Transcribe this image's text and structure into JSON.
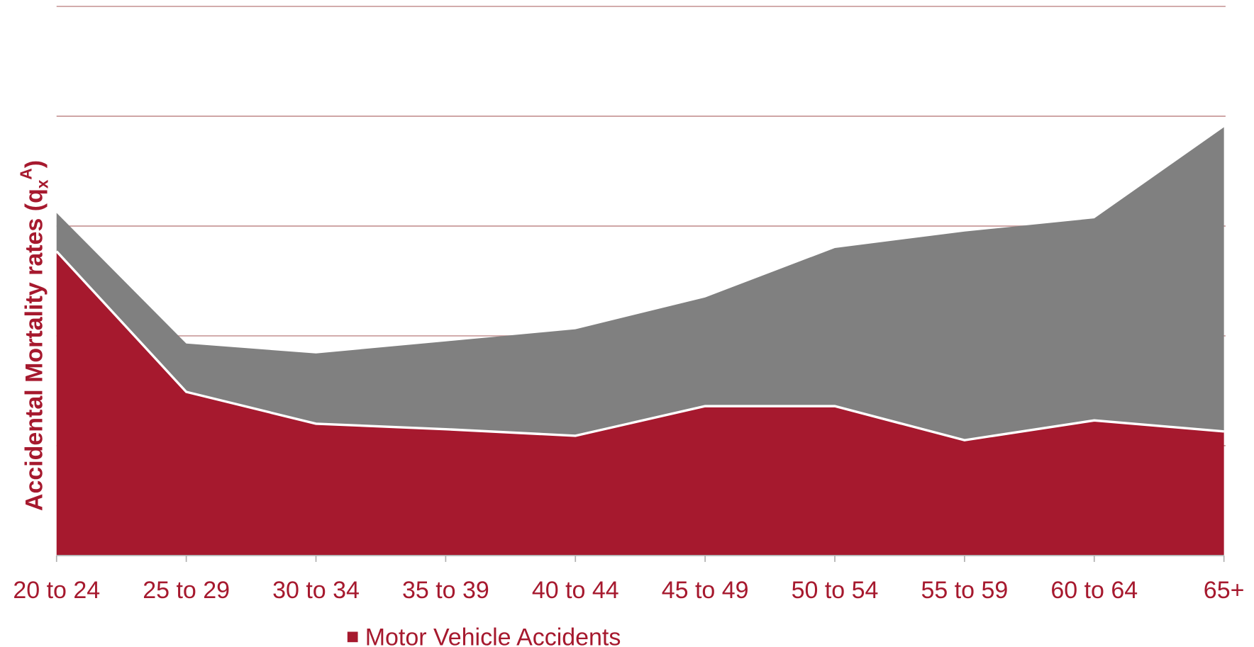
{
  "chart_data": {
    "type": "stacked_area",
    "y_label": {
      "text": "Accidental Mortality rates (q",
      "sub": "x",
      "sup": "A",
      "end": ")"
    },
    "categories": [
      "20 to 24",
      "25 to 29",
      "30 to 34",
      "35 to 39",
      "40 to 44",
      "45 to 49",
      "50 to 54",
      "55 to 59",
      "60 to 64",
      "65+"
    ],
    "series": [
      {
        "name": "Motor Vehicle Accidents",
        "color": "#a6192e",
        "values": [
          2.77,
          1.49,
          1.2,
          1.15,
          1.09,
          1.36,
          1.36,
          1.05,
          1.23,
          1.13
        ]
      },
      {
        "name": null,
        "color": "#808080",
        "values": [
          0.35,
          0.44,
          0.64,
          0.8,
          0.97,
          0.99,
          1.44,
          1.9,
          1.84,
          2.77
        ]
      }
    ],
    "ylim": [
      0,
      5
    ],
    "yticks": [
      0,
      1,
      2,
      3,
      4,
      5
    ],
    "grid": true,
    "grid_color": "#c89a9a",
    "legend": "bottom"
  }
}
